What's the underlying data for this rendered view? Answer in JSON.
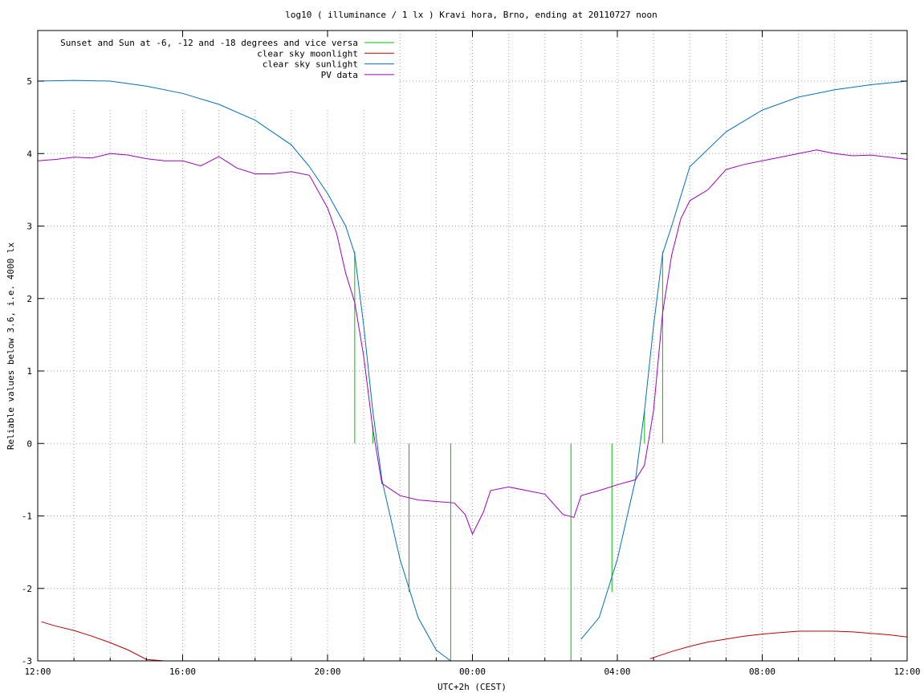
{
  "chart_data": {
    "type": "line",
    "title": "log10 ( illuminance / 1 lx ) Kravi hora, Brno, ending at 20110727 noon",
    "xlabel": "UTC+2h (CEST)",
    "ylabel": "Reliable values below 3.6, i.e. 4000 lx",
    "xlim": [
      12,
      36
    ],
    "ylim": [
      -3,
      5.7
    ],
    "x_ticks": [
      {
        "x": 12,
        "label": "12:00"
      },
      {
        "x": 16,
        "label": "16:00"
      },
      {
        "x": 20,
        "label": "20:00"
      },
      {
        "x": 24,
        "label": "00:00"
      },
      {
        "x": 28,
        "label": "04:00"
      },
      {
        "x": 32,
        "label": "08:00"
      },
      {
        "x": 36,
        "label": "12:00"
      }
    ],
    "y_ticks": [
      {
        "y": 5,
        "label": "5"
      },
      {
        "y": 4,
        "label": "4"
      },
      {
        "y": 3,
        "label": "3"
      },
      {
        "y": 2,
        "label": "2"
      },
      {
        "y": 1,
        "label": "1"
      },
      {
        "y": 0,
        "label": "0"
      },
      {
        "y": -1,
        "label": "-1"
      },
      {
        "y": -2,
        "label": "-2"
      },
      {
        "y": -3,
        "label": "-3"
      }
    ],
    "grid": true,
    "legend_position": "top-left",
    "series": [
      {
        "name": "Sunset and Sun at -6, -12 and -18 degrees and vice versa",
        "color": "#00c000",
        "kind": "impulses",
        "points": [
          {
            "x": 20.75,
            "y": 2.65
          },
          {
            "x": 21.25,
            "y": 0.25
          },
          {
            "x": 22.25,
            "y": -2.05
          },
          {
            "x": 23.4,
            "y": -3.0
          },
          {
            "x": 26.72,
            "y": -3.0
          },
          {
            "x": 27.85,
            "y": -2.05
          },
          {
            "x": 28.75,
            "y": 0.45
          },
          {
            "x": 29.25,
            "y": 2.65
          }
        ]
      },
      {
        "name": "clear sky moonlight",
        "color": "#c00000",
        "kind": "line",
        "x": [
          12.1,
          12.5,
          13.0,
          13.5,
          14.0,
          14.5,
          15.0,
          15.5,
          16.0,
          28.9,
          29.5,
          30.0,
          30.5,
          31.0,
          31.5,
          32.0,
          32.5,
          33.0,
          33.5,
          34.0,
          34.5,
          35.0,
          35.5,
          36.0
        ],
        "y": [
          -2.46,
          -2.52,
          -2.58,
          -2.66,
          -2.75,
          -2.85,
          -2.98,
          -3.1,
          -3.2,
          -2.97,
          -2.87,
          -2.8,
          -2.74,
          -2.7,
          -2.66,
          -2.63,
          -2.61,
          -2.59,
          -2.59,
          -2.59,
          -2.6,
          -2.62,
          -2.64,
          -2.67
        ]
      },
      {
        "name": "clear sky sunlight",
        "color": "#0070c0",
        "kind": "line",
        "x": [
          12.0,
          13.0,
          14.0,
          15.0,
          16.0,
          17.0,
          18.0,
          19.0,
          19.5,
          20.0,
          20.5,
          20.75,
          21.0,
          21.25,
          21.5,
          22.0,
          22.5,
          23.0,
          23.4,
          26.7,
          27.0,
          27.5,
          28.0,
          28.5,
          28.75,
          29.0,
          29.25,
          29.5,
          30.0,
          31.0,
          32.0,
          33.0,
          34.0,
          35.0,
          36.0
        ],
        "y": [
          5.0,
          5.01,
          5.0,
          4.93,
          4.83,
          4.68,
          4.46,
          4.12,
          3.82,
          3.45,
          3.0,
          2.62,
          1.62,
          0.45,
          -0.5,
          -1.6,
          -2.4,
          -2.85,
          -3.05,
          -3.05,
          -2.7,
          -2.4,
          -1.6,
          -0.5,
          0.45,
          1.62,
          2.62,
          3.0,
          3.82,
          4.3,
          4.6,
          4.78,
          4.88,
          4.95,
          5.0
        ]
      },
      {
        "name": "PV data",
        "color": "#a000c0",
        "kind": "line",
        "x": [
          12.0,
          12.5,
          13.0,
          13.5,
          14.0,
          14.5,
          15.0,
          15.5,
          16.0,
          16.5,
          17.0,
          17.5,
          18.0,
          18.5,
          19.0,
          19.5,
          20.0,
          20.25,
          20.5,
          20.75,
          21.0,
          21.25,
          21.5,
          22.0,
          22.5,
          23.0,
          23.5,
          23.8,
          24.0,
          24.3,
          24.5,
          25.0,
          25.5,
          26.0,
          26.5,
          26.8,
          27.0,
          27.5,
          28.0,
          28.5,
          28.75,
          29.0,
          29.25,
          29.5,
          29.75,
          30.0,
          30.5,
          31.0,
          31.5,
          32.0,
          32.5,
          33.0,
          33.5,
          34.0,
          34.5,
          35.0,
          35.5,
          36.0
        ],
        "y": [
          3.9,
          3.92,
          3.95,
          3.94,
          4.0,
          3.98,
          3.93,
          3.9,
          3.9,
          3.83,
          3.96,
          3.8,
          3.72,
          3.72,
          3.75,
          3.7,
          3.25,
          2.9,
          2.35,
          1.95,
          1.2,
          0.2,
          -0.55,
          -0.72,
          -0.78,
          -0.8,
          -0.82,
          -0.98,
          -1.25,
          -0.95,
          -0.65,
          -0.6,
          -0.65,
          -0.7,
          -0.98,
          -1.02,
          -0.72,
          -0.65,
          -0.57,
          -0.5,
          -0.3,
          0.45,
          1.8,
          2.6,
          3.1,
          3.35,
          3.5,
          3.78,
          3.85,
          3.9,
          3.95,
          4.0,
          4.05,
          4.0,
          3.97,
          3.98,
          3.95,
          3.92
        ]
      }
    ]
  }
}
